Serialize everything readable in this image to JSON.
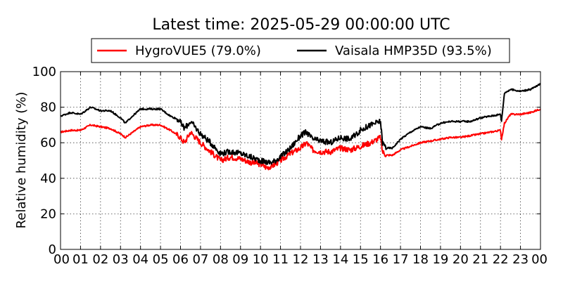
{
  "chart_data": {
    "type": "line",
    "title": "Latest time: 2025-05-29 00:00:00 UTC",
    "ylabel": "Relative humidity (%)",
    "xlabel": "",
    "ylim": [
      0,
      100
    ],
    "xlim": [
      0,
      24
    ],
    "grid": true,
    "legend_position": "top",
    "yticks": [
      "0",
      "20",
      "40",
      "60",
      "80",
      "100"
    ],
    "xticks": [
      "00",
      "01",
      "02",
      "03",
      "04",
      "05",
      "06",
      "07",
      "08",
      "09",
      "10",
      "11",
      "12",
      "13",
      "14",
      "15",
      "16",
      "17",
      "18",
      "19",
      "20",
      "21",
      "22",
      "23",
      "00"
    ],
    "series": [
      {
        "name": "HygroVUE5 (79.0%)",
        "color": "#ff0000",
        "x": [
          0,
          0.5,
          1,
          1.5,
          2,
          2.5,
          3,
          3.25,
          3.5,
          4,
          4.5,
          5,
          5.5,
          5.9,
          6.2,
          6.5,
          7,
          7.5,
          8,
          8.5,
          9,
          9.5,
          10,
          10.3,
          10.6,
          11,
          11.5,
          12,
          12.3,
          12.6,
          13,
          13.5,
          14,
          14.5,
          15,
          15.5,
          16,
          16.1,
          16.3,
          16.6,
          17,
          17.5,
          18,
          18.5,
          19,
          19.5,
          20,
          20.5,
          21,
          21.5,
          22,
          22.05,
          22.2,
          22.5,
          23,
          23.5,
          24
        ],
        "y": [
          66,
          67,
          67,
          70,
          69,
          68,
          65,
          63,
          65,
          69,
          70,
          70,
          67,
          64,
          60,
          66,
          60,
          55,
          50,
          52,
          51,
          49,
          48,
          46,
          47,
          50,
          54,
          57,
          60,
          56,
          55,
          55,
          57,
          56,
          58,
          60,
          63,
          55,
          53,
          53,
          56,
          58,
          60,
          61,
          62,
          63,
          63,
          64,
          65,
          66,
          67,
          62,
          71,
          76,
          76,
          77,
          79
        ]
      },
      {
        "name": "Vaisala HMP35D (93.5%)",
        "color": "#000000",
        "x": [
          0,
          0.5,
          1,
          1.5,
          2,
          2.5,
          3,
          3.25,
          3.5,
          4,
          4.5,
          5,
          5.5,
          5.9,
          6.2,
          6.5,
          7,
          7.5,
          8,
          8.5,
          9,
          9.5,
          10,
          10.3,
          10.6,
          11,
          11.5,
          12,
          12.3,
          12.6,
          13,
          13.5,
          14,
          14.5,
          15,
          15.5,
          16,
          16.1,
          16.3,
          16.6,
          17,
          17.5,
          18,
          18.5,
          19,
          19.5,
          20,
          20.5,
          21,
          21.5,
          22,
          22.05,
          22.2,
          22.5,
          23,
          23.5,
          24
        ],
        "y": [
          75,
          77,
          76,
          80,
          78,
          78,
          74,
          71,
          74,
          79,
          79,
          79,
          75,
          73,
          68,
          72,
          65,
          60,
          54,
          55,
          54,
          52,
          50,
          49,
          49,
          52,
          57,
          64,
          66,
          62,
          61,
          60,
          63,
          62,
          67,
          70,
          72,
          60,
          57,
          57,
          62,
          66,
          69,
          68,
          71,
          72,
          72,
          72,
          74,
          75,
          76,
          72,
          88,
          90,
          89,
          90,
          93
        ]
      }
    ]
  }
}
